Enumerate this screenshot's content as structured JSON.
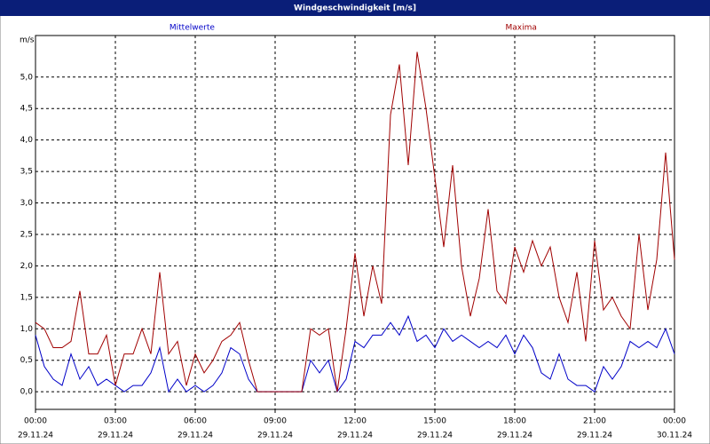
{
  "chart_data": {
    "type": "line",
    "title": "Windgeschwindigkeit [m/s]",
    "y_label": "m/s",
    "x": [
      0,
      20,
      40,
      60,
      80,
      100,
      120,
      140,
      160,
      180,
      200,
      220,
      240,
      260,
      280,
      300,
      320,
      340,
      360,
      380,
      400,
      420,
      440,
      460,
      480,
      500,
      520,
      540,
      560,
      580,
      600,
      620,
      640,
      660,
      680,
      700,
      720,
      740,
      760,
      780,
      800,
      820,
      840,
      860,
      880,
      900,
      920,
      940,
      960,
      980,
      1000,
      1020,
      1040,
      1060,
      1080,
      1100,
      1120,
      1140,
      1160,
      1180,
      1200,
      1220,
      1240,
      1260,
      1280,
      1300,
      1320,
      1340,
      1360,
      1380,
      1400,
      1420,
      1440
    ],
    "series": [
      {
        "name": "Mittelwerte",
        "color": "#0000c8",
        "values": [
          0.9,
          0.4,
          0.2,
          0.1,
          0.6,
          0.2,
          0.4,
          0.1,
          0.2,
          0.1,
          0.0,
          0.1,
          0.1,
          0.3,
          0.7,
          0.0,
          0.2,
          0.0,
          0.1,
          0.0,
          0.1,
          0.3,
          0.7,
          0.6,
          0.2,
          0.0,
          0,
          0,
          0,
          0,
          0,
          0.5,
          0.3,
          0.5,
          0.0,
          0.2,
          0.8,
          0.7,
          0.9,
          0.9,
          1.1,
          0.9,
          1.2,
          0.8,
          0.9,
          0.7,
          1.0,
          0.8,
          0.9,
          0.8,
          0.7,
          0.8,
          0.7,
          0.9,
          0.6,
          0.9,
          0.7,
          0.3,
          0.2,
          0.6,
          0.2,
          0.1,
          0.1,
          0.0,
          0.4,
          0.2,
          0.4,
          0.8,
          0.7,
          0.8,
          0.7,
          1.0,
          0.6
        ]
      },
      {
        "name": "Maxima",
        "color": "#a00000",
        "values": [
          1.1,
          1.0,
          0.7,
          0.7,
          0.8,
          1.6,
          0.6,
          0.6,
          0.9,
          0.1,
          0.6,
          0.6,
          1.0,
          0.6,
          1.9,
          0.6,
          0.8,
          0.1,
          0.6,
          0.3,
          0.5,
          0.8,
          0.9,
          1.1,
          0.5,
          0.0,
          0,
          0,
          0,
          0,
          0,
          1.0,
          0.9,
          1.0,
          0.0,
          1.0,
          2.2,
          1.2,
          2.0,
          1.4,
          4.4,
          5.2,
          3.6,
          5.4,
          4.5,
          3.4,
          2.3,
          3.6,
          2.0,
          1.2,
          1.8,
          2.9,
          1.6,
          1.4,
          2.3,
          1.9,
          2.4,
          2.0,
          2.3,
          1.5,
          1.1,
          1.9,
          0.8,
          2.4,
          1.3,
          1.5,
          1.2,
          1.0,
          2.5,
          1.3,
          2.1,
          3.8,
          2.1
        ]
      }
    ],
    "xlim": [
      0,
      1440
    ],
    "xticks": [
      {
        "value": 0,
        "label": [
          "00:00",
          "29.11.24"
        ]
      },
      {
        "value": 180,
        "label": [
          "03:00",
          "29.11.24"
        ]
      },
      {
        "value": 360,
        "label": [
          "06:00",
          "29.11.24"
        ]
      },
      {
        "value": 540,
        "label": [
          "09:00",
          "29.11.24"
        ]
      },
      {
        "value": 720,
        "label": [
          "12:00",
          "29.11.24"
        ]
      },
      {
        "value": 900,
        "label": [
          "15:00",
          "29.11.24"
        ]
      },
      {
        "value": 1080,
        "label": [
          "18:00",
          "29.11.24"
        ]
      },
      {
        "value": 1260,
        "label": [
          "21:00",
          "29.11.24"
        ]
      },
      {
        "value": 1440,
        "label": [
          "00:00",
          "30.11.24"
        ]
      }
    ],
    "ylim": [
      -0.28,
      5.66
    ],
    "yticks": [
      {
        "value": 0,
        "label": "0,0"
      },
      {
        "value": 0.5,
        "label": "0,5"
      },
      {
        "value": 1,
        "label": "1,0"
      },
      {
        "value": 1.5,
        "label": "1,5"
      },
      {
        "value": 2,
        "label": "2,0"
      },
      {
        "value": 2.5,
        "label": "2,5"
      },
      {
        "value": 3,
        "label": "3,0"
      },
      {
        "value": 3.5,
        "label": "3,5"
      },
      {
        "value": 4,
        "label": "4,0"
      },
      {
        "value": 4.5,
        "label": "4,5"
      },
      {
        "value": 5,
        "label": "5,0"
      }
    ],
    "grid": true
  }
}
